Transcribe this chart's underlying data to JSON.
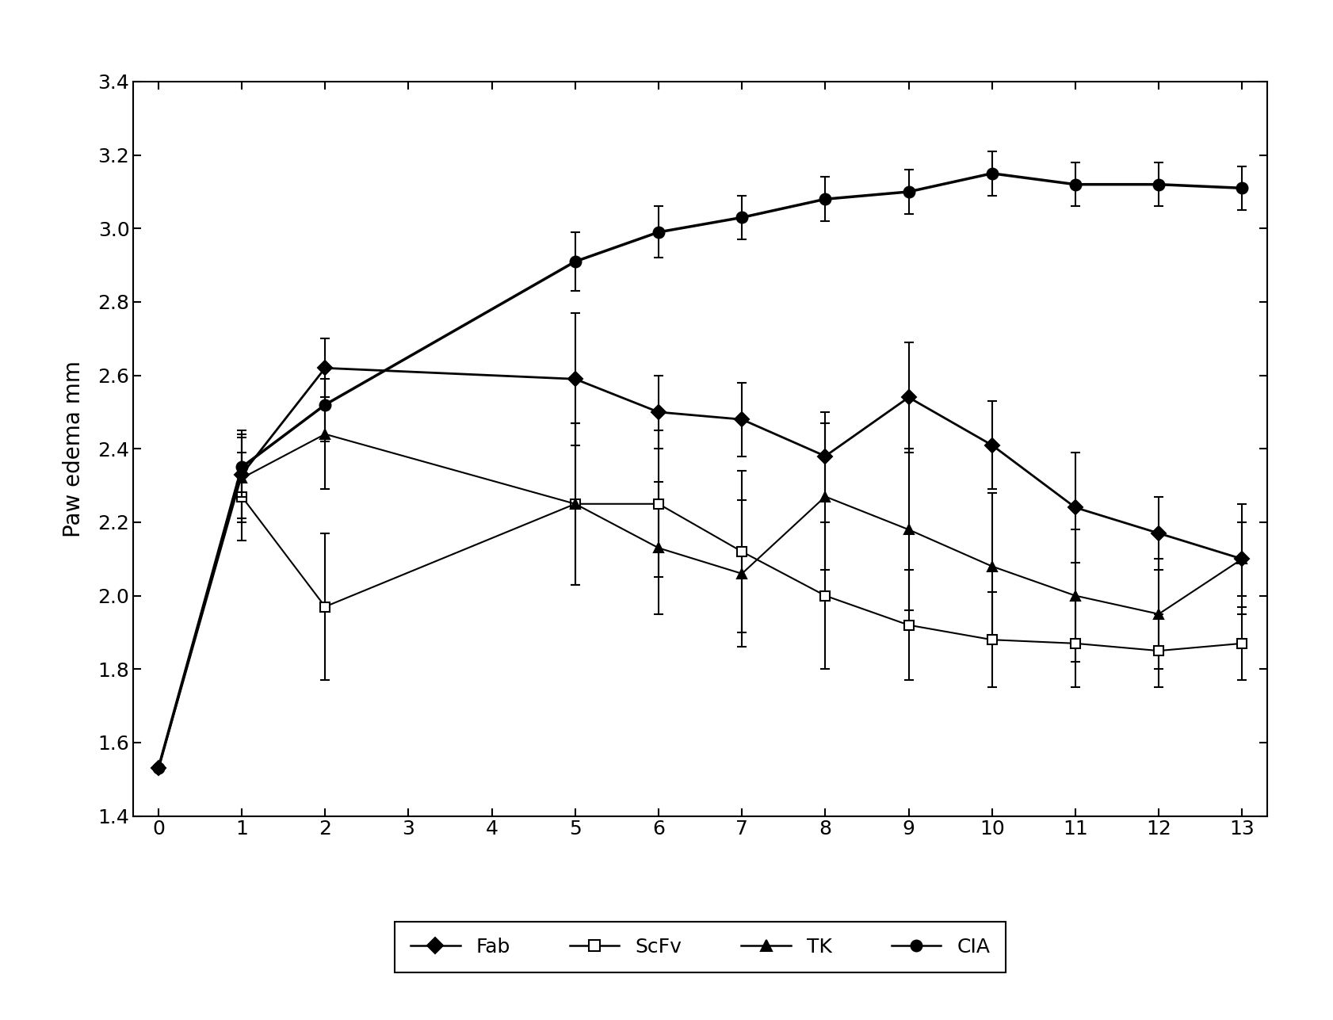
{
  "title": "",
  "ylabel": "Paw edema mm",
  "xlabel": "",
  "xlim": [
    -0.3,
    13.3
  ],
  "ylim": [
    1.4,
    3.4
  ],
  "yticks": [
    1.4,
    1.6,
    1.8,
    2.0,
    2.2,
    2.4,
    2.6,
    2.8,
    3.0,
    3.2,
    3.4
  ],
  "xticks": [
    0,
    1,
    2,
    3,
    4,
    5,
    6,
    7,
    8,
    9,
    10,
    11,
    12,
    13
  ],
  "series": {
    "Fab": {
      "x": [
        0,
        1,
        2,
        5,
        6,
        7,
        8,
        9,
        10,
        11,
        12,
        13
      ],
      "y": [
        1.53,
        2.33,
        2.62,
        2.59,
        2.5,
        2.48,
        2.38,
        2.54,
        2.41,
        2.24,
        2.17,
        2.1
      ],
      "yerr": [
        0.0,
        0.12,
        0.08,
        0.18,
        0.1,
        0.1,
        0.12,
        0.15,
        0.12,
        0.15,
        0.1,
        0.1
      ],
      "marker": "D",
      "markersize": 9,
      "linewidth": 2.0
    },
    "ScFv": {
      "x": [
        1,
        2,
        5,
        6,
        7,
        8,
        9,
        10,
        11,
        12,
        13
      ],
      "y": [
        2.27,
        1.97,
        2.25,
        2.25,
        2.12,
        2.0,
        1.92,
        1.88,
        1.87,
        1.85,
        1.87
      ],
      "yerr": [
        0.12,
        0.2,
        0.22,
        0.2,
        0.22,
        0.2,
        0.15,
        0.13,
        0.12,
        0.1,
        0.1
      ],
      "marker": "s",
      "markersize": 9,
      "linewidth": 1.5
    },
    "TK": {
      "x": [
        1,
        2,
        5,
        6,
        7,
        8,
        9,
        10,
        11,
        12,
        13
      ],
      "y": [
        2.32,
        2.44,
        2.25,
        2.13,
        2.06,
        2.27,
        2.18,
        2.08,
        2.0,
        1.95,
        2.1
      ],
      "yerr": [
        0.12,
        0.15,
        0.22,
        0.18,
        0.2,
        0.2,
        0.22,
        0.2,
        0.18,
        0.15,
        0.15
      ],
      "marker": "^",
      "markersize": 9,
      "linewidth": 1.5
    },
    "CIA": {
      "x": [
        0,
        1,
        2,
        5,
        6,
        7,
        8,
        9,
        10,
        11,
        12,
        13
      ],
      "y": [
        1.53,
        2.35,
        2.52,
        2.91,
        2.99,
        3.03,
        3.08,
        3.1,
        3.15,
        3.12,
        3.12,
        3.11
      ],
      "yerr": [
        0.0,
        0.08,
        0.1,
        0.08,
        0.07,
        0.06,
        0.06,
        0.06,
        0.06,
        0.06,
        0.06,
        0.06
      ],
      "marker": "o",
      "markersize": 10,
      "linewidth": 2.5
    }
  },
  "legend_order": [
    "Fab",
    "ScFv",
    "TK",
    "CIA"
  ],
  "background_color": "#ffffff",
  "figure_background": "#ffffff",
  "tick_labelsize": 18,
  "ylabel_fontsize": 20,
  "legend_fontsize": 18
}
